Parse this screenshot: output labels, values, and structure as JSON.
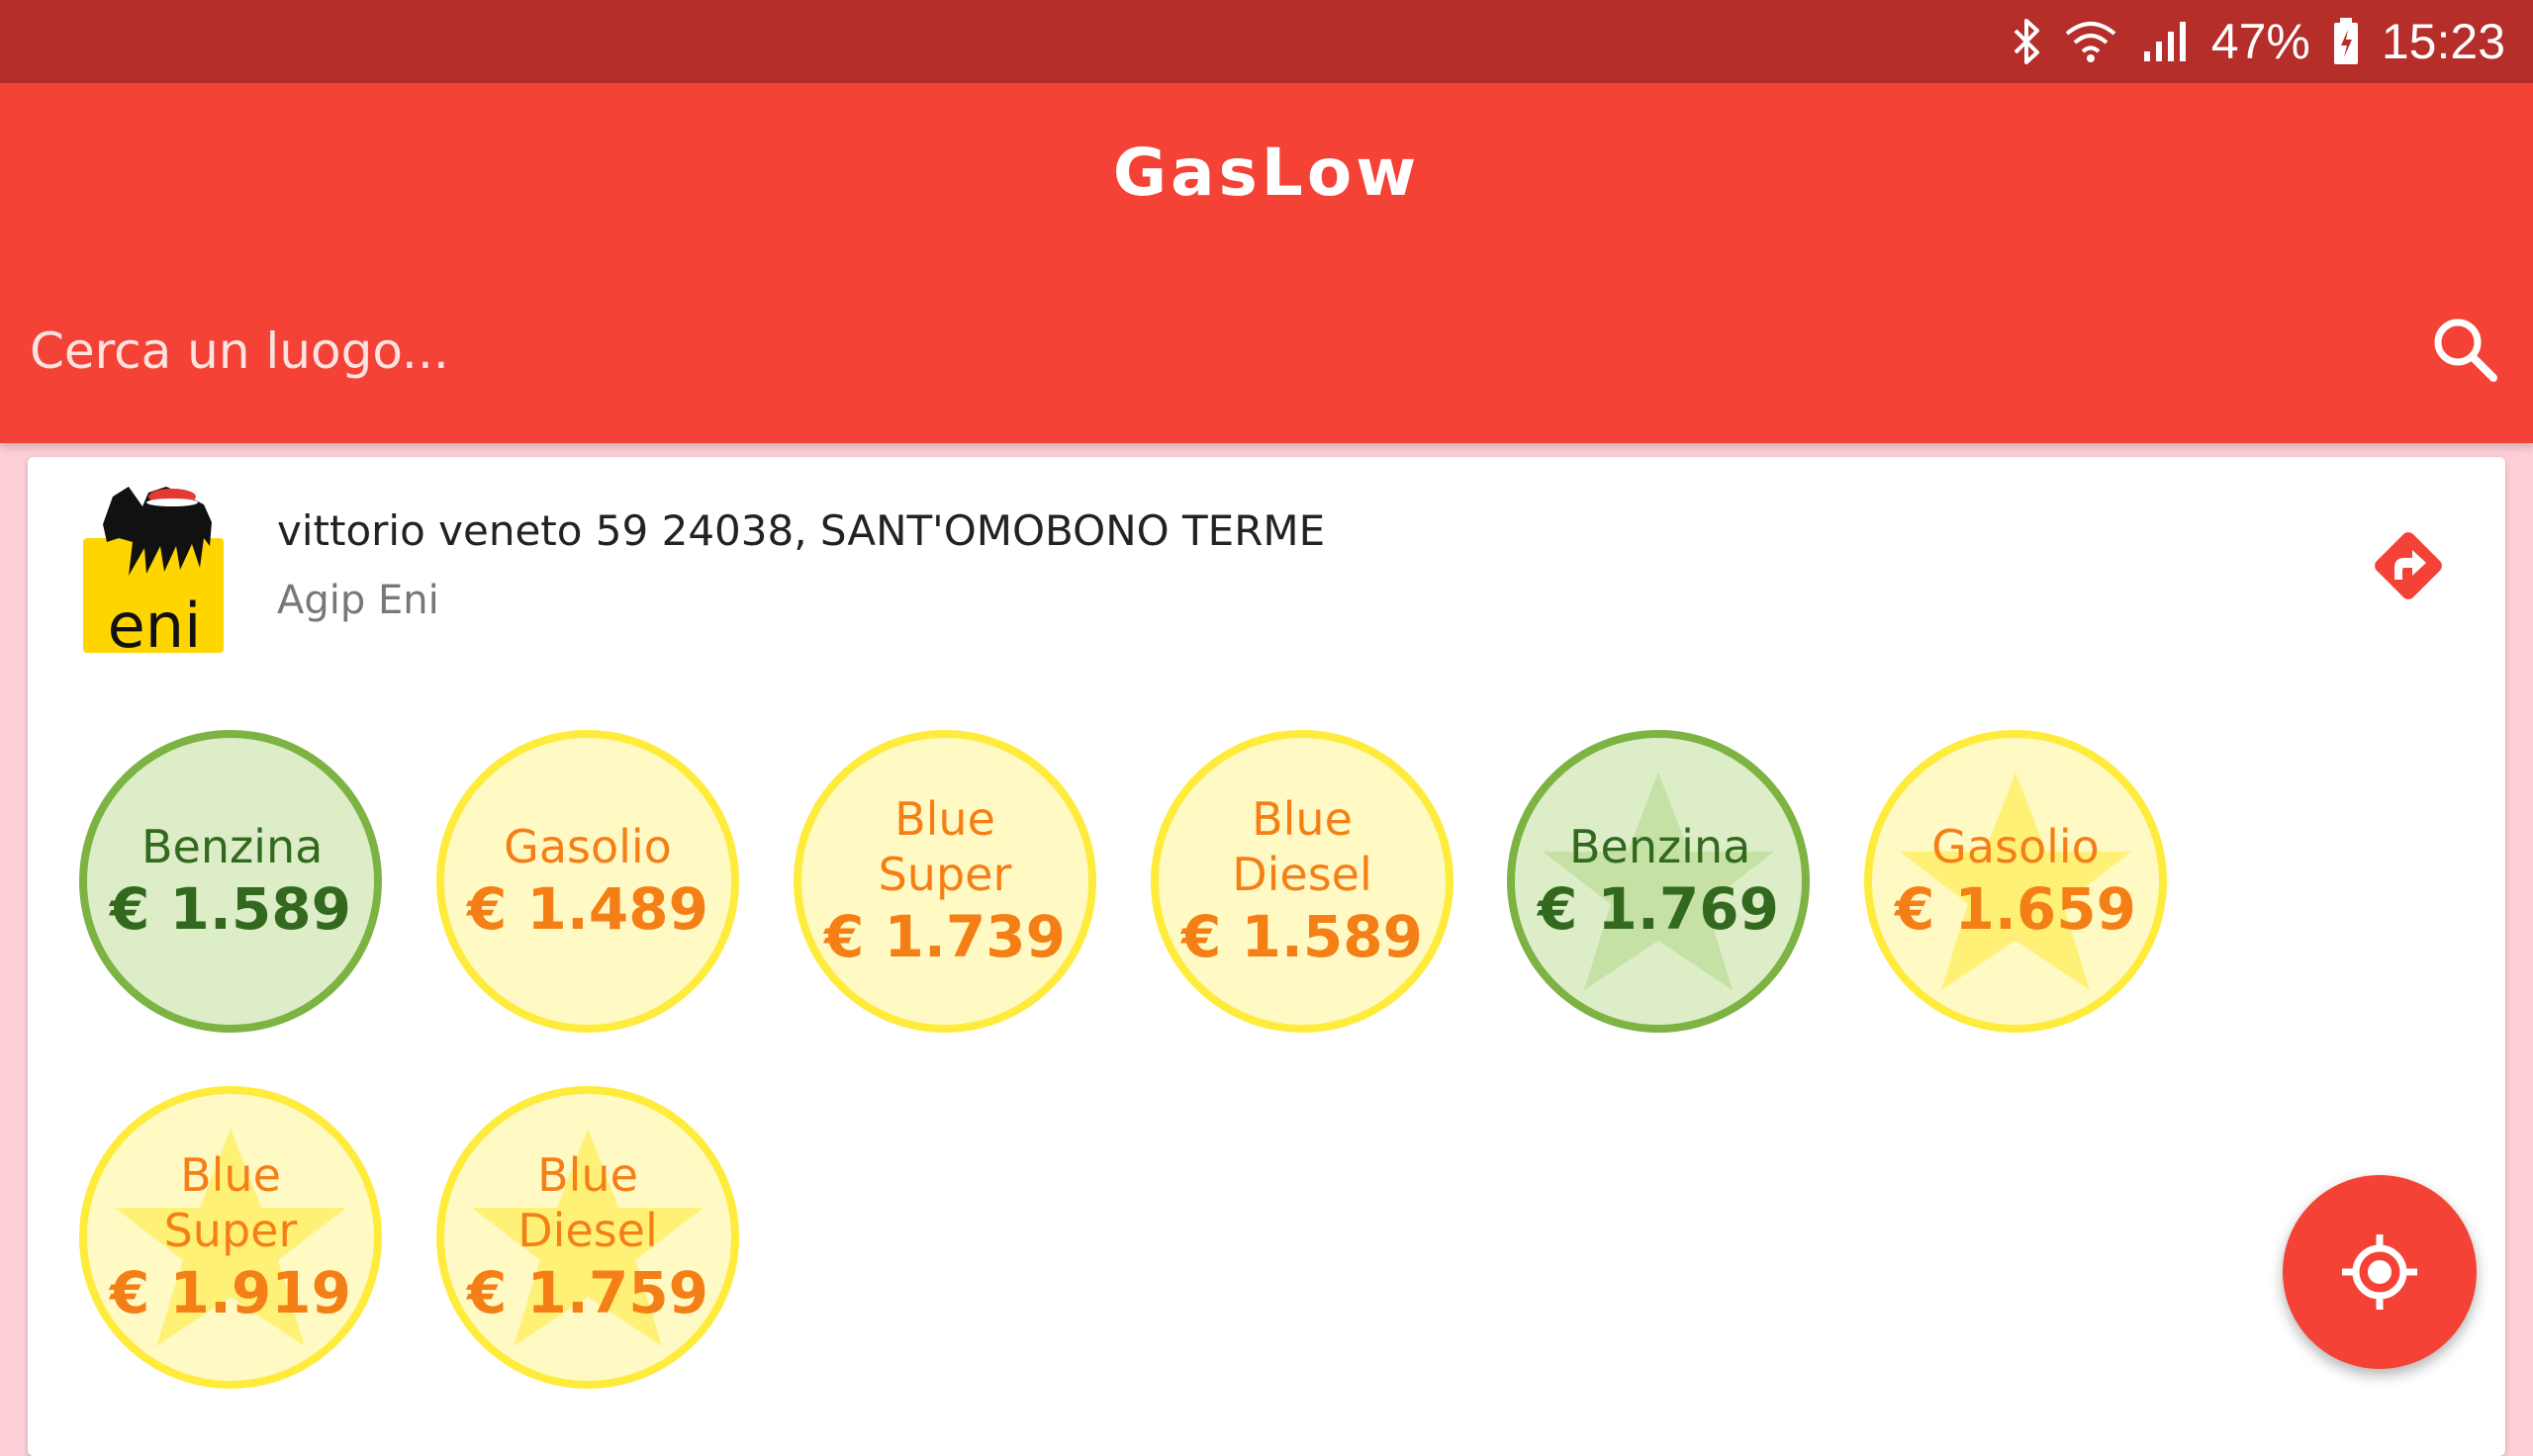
{
  "status_bar": {
    "battery": "47%",
    "time": "15:23",
    "icons": [
      "bluetooth-icon",
      "wifi-icon",
      "signal-icon",
      "battery-icon"
    ]
  },
  "app_bar": {
    "title": "GasLow",
    "search_placeholder": "Cerca un luogo...",
    "search_icon": "search-icon"
  },
  "station": {
    "address": "vittorio veneto 59 24038, SANT'OMOBONO TERME",
    "brand": "Agip Eni",
    "logo_text": "eni",
    "directions_icon": "directions-icon"
  },
  "prices": [
    {
      "fuel": "Benzina",
      "price": "€ 1.589",
      "status": "green",
      "self_service": false
    },
    {
      "fuel": "Gasolio",
      "price": "€ 1.489",
      "status": "yellow",
      "self_service": false
    },
    {
      "fuel": "Blue Super",
      "price": "€ 1.739",
      "status": "yellow",
      "self_service": false
    },
    {
      "fuel": "Blue Diesel",
      "price": "€ 1.589",
      "status": "yellow",
      "self_service": false
    },
    {
      "fuel": "Benzina",
      "price": "€ 1.769",
      "status": "green",
      "self_service": true
    },
    {
      "fuel": "Gasolio",
      "price": "€ 1.659",
      "status": "yellow",
      "self_service": true
    },
    {
      "fuel": "Blue Super",
      "price": "€ 1.919",
      "status": "yellow",
      "self_service": true
    },
    {
      "fuel": "Blue Diesel",
      "price": "€ 1.759",
      "status": "yellow",
      "self_service": true
    }
  ],
  "fab": {
    "icon": "my-location-icon"
  },
  "colors": {
    "status_bar": "#b52e2a",
    "primary": "#f44336",
    "green_fill": "#dcedc8",
    "green_border": "#7cb342",
    "green_text": "#33691e",
    "yellow_fill": "#fff9c4",
    "yellow_border": "#ffeb3b",
    "yellow_text": "#f57f17"
  }
}
